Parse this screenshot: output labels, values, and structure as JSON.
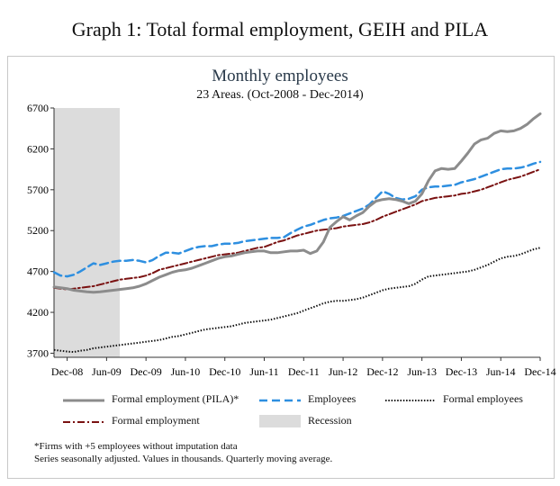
{
  "header": {
    "graph_title": "Graph 1: Total formal employment, GEIH and PILA"
  },
  "notes": {
    "line1": "*Firms with +5 employees without imputation data",
    "line2": "Series seasonally adjusted. Values in thousands. Quarterly moving average."
  },
  "colors": {
    "pila": "#8c8c8c",
    "employees": "#2e8fe0",
    "formal_employees": "#111111",
    "formal_employment": "#7a1212",
    "recession": "#dcdcdc"
  },
  "chart_data": {
    "type": "line",
    "title": "Monthly employees",
    "subtitle": "23 Areas. (Oct-2008 - Dec-2014)",
    "xlabel": "",
    "ylabel": "",
    "ylim": [
      3650,
      6700
    ],
    "yticks": [
      3700,
      4200,
      4700,
      5200,
      5700,
      6200,
      6700
    ],
    "x_start": "Oct-2008",
    "x_end": "Dec-2014",
    "xticks": [
      {
        "label": "Dec-08",
        "index": 2
      },
      {
        "label": "Jun-09",
        "index": 8
      },
      {
        "label": "Dec-09",
        "index": 14
      },
      {
        "label": "Jun-10",
        "index": 20
      },
      {
        "label": "Dec-10",
        "index": 26
      },
      {
        "label": "Jun-11",
        "index": 32
      },
      {
        "label": "Dec-11",
        "index": 38
      },
      {
        "label": "Jun-12",
        "index": 44
      },
      {
        "label": "Dec-12",
        "index": 50
      },
      {
        "label": "Jun-13",
        "index": 56
      },
      {
        "label": "Dec-13",
        "index": 62
      },
      {
        "label": "Jun-14",
        "index": 68
      },
      {
        "label": "Dec-14",
        "index": 74
      }
    ],
    "recession": {
      "label": "Recession",
      "start_index": 0,
      "end_index": 10
    },
    "series": [
      {
        "name": "Formal employment (PILA)*",
        "key": "pila",
        "style": "solid",
        "values": [
          4510,
          4500,
          4490,
          4470,
          4460,
          4450,
          4445,
          4450,
          4460,
          4470,
          4480,
          4490,
          4500,
          4520,
          4550,
          4590,
          4630,
          4660,
          4690,
          4710,
          4720,
          4740,
          4770,
          4800,
          4830,
          4860,
          4880,
          4890,
          4910,
          4930,
          4940,
          4950,
          4950,
          4930,
          4930,
          4940,
          4950,
          4950,
          4960,
          4920,
          4950,
          5060,
          5240,
          5310,
          5370,
          5330,
          5380,
          5420,
          5500,
          5560,
          5580,
          5590,
          5580,
          5560,
          5530,
          5560,
          5650,
          5810,
          5930,
          5960,
          5950,
          5960,
          6050,
          6150,
          6260,
          6310,
          6330,
          6390,
          6420,
          6410,
          6420,
          6450,
          6500,
          6570,
          6630
        ]
      },
      {
        "name": "Employees",
        "key": "employees",
        "style": "dashed",
        "values": [
          4690,
          4650,
          4640,
          4660,
          4700,
          4750,
          4800,
          4780,
          4800,
          4820,
          4830,
          4830,
          4840,
          4830,
          4810,
          4840,
          4890,
          4930,
          4930,
          4920,
          4950,
          4980,
          5000,
          5010,
          5010,
          5030,
          5040,
          5040,
          5050,
          5070,
          5080,
          5090,
          5100,
          5110,
          5110,
          5120,
          5170,
          5210,
          5250,
          5270,
          5300,
          5330,
          5350,
          5360,
          5380,
          5410,
          5440,
          5470,
          5520,
          5600,
          5680,
          5650,
          5600,
          5580,
          5590,
          5620,
          5700,
          5730,
          5740,
          5740,
          5750,
          5760,
          5790,
          5810,
          5830,
          5860,
          5890,
          5920,
          5950,
          5960,
          5960,
          5970,
          5990,
          6020,
          6040
        ]
      },
      {
        "name": "Formal employees",
        "key": "formal_employees",
        "style": "dotted",
        "values": [
          3740,
          3730,
          3720,
          3715,
          3730,
          3740,
          3760,
          3770,
          3780,
          3790,
          3800,
          3810,
          3820,
          3830,
          3840,
          3850,
          3860,
          3880,
          3900,
          3910,
          3930,
          3950,
          3970,
          3990,
          4000,
          4010,
          4020,
          4030,
          4050,
          4070,
          4080,
          4090,
          4100,
          4110,
          4130,
          4150,
          4170,
          4190,
          4220,
          4250,
          4280,
          4310,
          4330,
          4340,
          4340,
          4350,
          4360,
          4380,
          4410,
          4440,
          4470,
          4490,
          4500,
          4510,
          4520,
          4550,
          4600,
          4640,
          4650,
          4660,
          4670,
          4680,
          4690,
          4700,
          4720,
          4750,
          4780,
          4820,
          4860,
          4880,
          4890,
          4910,
          4940,
          4970,
          4990
        ]
      },
      {
        "name": "Formal employment",
        "key": "formal_employment",
        "style": "dashdot",
        "values": [
          4500,
          4490,
          4480,
          4490,
          4500,
          4510,
          4520,
          4540,
          4560,
          4580,
          4600,
          4610,
          4620,
          4630,
          4650,
          4680,
          4720,
          4740,
          4760,
          4780,
          4800,
          4820,
          4840,
          4860,
          4880,
          4900,
          4910,
          4920,
          4930,
          4950,
          4970,
          4990,
          5000,
          5030,
          5060,
          5080,
          5110,
          5140,
          5160,
          5180,
          5200,
          5210,
          5220,
          5230,
          5250,
          5260,
          5270,
          5280,
          5300,
          5330,
          5370,
          5400,
          5430,
          5460,
          5490,
          5520,
          5560,
          5580,
          5600,
          5610,
          5620,
          5630,
          5650,
          5660,
          5680,
          5700,
          5730,
          5760,
          5790,
          5820,
          5840,
          5860,
          5890,
          5920,
          5950
        ]
      }
    ]
  }
}
